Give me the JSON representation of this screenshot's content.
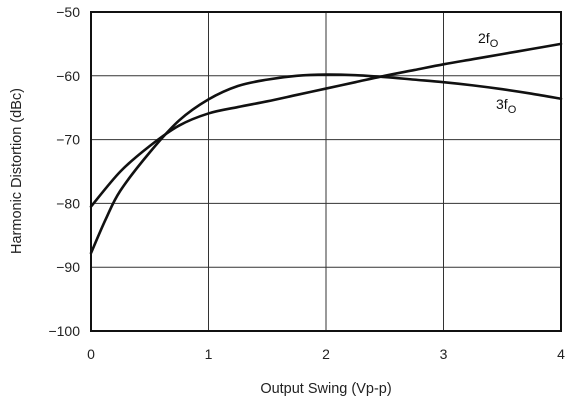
{
  "chart_data": {
    "type": "line",
    "title": "",
    "xlabel": "Output Swing (Vp-p)",
    "ylabel": "Harmonic Distortion (dBc)",
    "xlim": [
      0,
      4
    ],
    "ylim": [
      -100,
      -50
    ],
    "x_ticks": [
      0,
      1,
      2,
      3,
      4
    ],
    "x_tick_labels": [
      "0",
      "1",
      "2",
      "3",
      "4"
    ],
    "y_ticks": [
      -50,
      -60,
      -70,
      -80,
      -90,
      -100
    ],
    "y_tick_labels": [
      "−50",
      "−60",
      "−70",
      "−80",
      "−90",
      "−100"
    ],
    "grid": true,
    "series": [
      {
        "name": "2fO",
        "label_main": "2f",
        "label_sub": "O",
        "color": "#111111",
        "x": [
          0,
          0.25,
          0.5,
          0.75,
          1,
          1.25,
          1.5,
          1.75,
          2,
          2.25,
          2.5,
          2.75,
          3,
          3.25,
          3.5,
          3.75,
          4
        ],
        "y": [
          -80.5,
          -75.0,
          -71.0,
          -67.8,
          -65.9,
          -64.9,
          -64.0,
          -63.0,
          -62.0,
          -61.0,
          -60.0,
          -59.1,
          -58.2,
          -57.4,
          -56.6,
          -55.8,
          -55.0
        ]
      },
      {
        "name": "3fO",
        "label_main": "3f",
        "label_sub": "O",
        "color": "#111111",
        "x": [
          0,
          0.125,
          0.25,
          0.5,
          0.75,
          1,
          1.25,
          1.5,
          1.75,
          2,
          2.25,
          2.5,
          2.75,
          3,
          3.25,
          3.5,
          3.75,
          4
        ],
        "y": [
          -87.8,
          -82.5,
          -78.0,
          -72.0,
          -67.0,
          -63.7,
          -61.6,
          -60.6,
          -60.0,
          -59.8,
          -59.9,
          -60.2,
          -60.6,
          -61.0,
          -61.5,
          -62.1,
          -62.8,
          -63.6
        ]
      }
    ]
  }
}
